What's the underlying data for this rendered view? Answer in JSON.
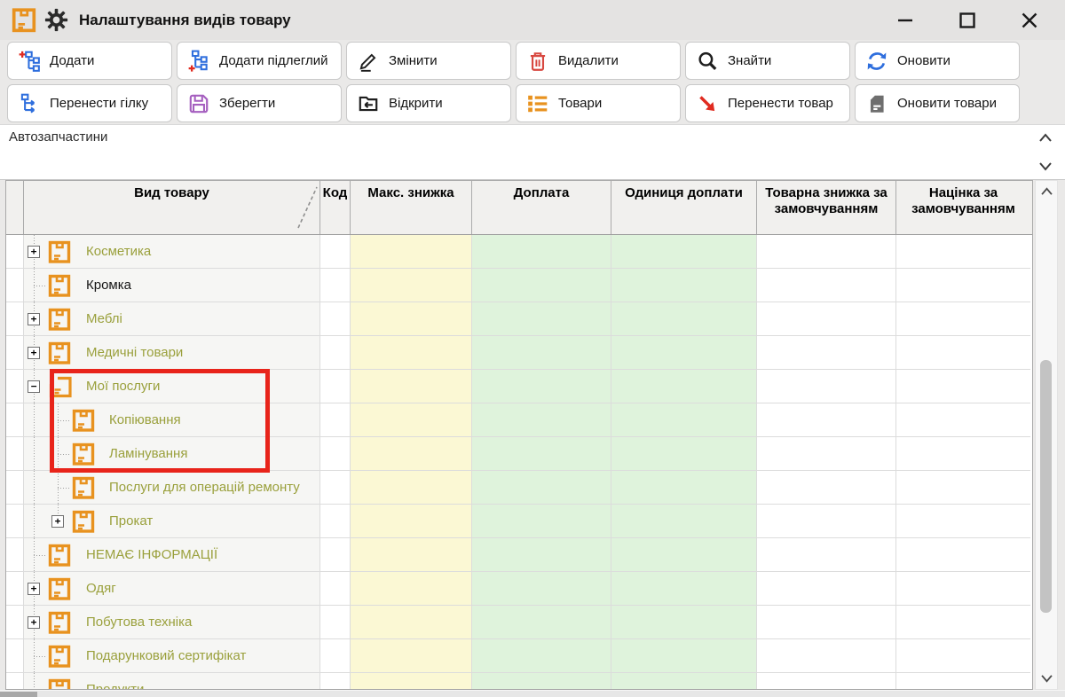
{
  "window": {
    "title": "Налаштування видів товару",
    "controls": [
      {
        "name": "minimize"
      },
      {
        "name": "maximize"
      },
      {
        "name": "close"
      }
    ]
  },
  "toolbar": {
    "row1": [
      {
        "label": "Додати",
        "icon": "tree-add-icon"
      },
      {
        "label": "Додати підлеглий",
        "icon": "tree-add-child-icon"
      },
      {
        "label": "Змінити",
        "icon": "pencil-icon"
      },
      {
        "label": "Видалити",
        "icon": "trash-icon"
      },
      {
        "label": "Знайти",
        "icon": "search-icon"
      },
      {
        "label": "Оновити",
        "icon": "refresh-icon"
      }
    ],
    "row2": [
      {
        "label": "Перенести гілку",
        "icon": "tree-move-icon"
      },
      {
        "label": "Зберегти",
        "icon": "save-icon"
      },
      {
        "label": "Відкрити",
        "icon": "open-folder-icon"
      },
      {
        "label": "Товари",
        "icon": "products-list-icon"
      },
      {
        "label": "Перенести товар",
        "icon": "move-product-arrow-icon"
      },
      {
        "label": "Оновити товари",
        "icon": "update-products-icon"
      }
    ]
  },
  "path_panel": {
    "text": "Автозапчастини"
  },
  "table": {
    "columns": [
      "Вид товару",
      "Код",
      "Макс. знижка",
      "Доплата",
      "Одиниця доплати",
      "Товарна знижка за замовчуванням",
      "Націнка за замовчуванням"
    ],
    "rows": [
      {
        "label": "Косметика",
        "level": 0,
        "expander": "plus",
        "icon": "product-type"
      },
      {
        "label": "Кромка",
        "level": 0,
        "expander": null,
        "icon": "product-type",
        "text_color": "black"
      },
      {
        "label": "Меблі",
        "level": 0,
        "expander": "plus",
        "icon": "product-type"
      },
      {
        "label": "Медичні товари",
        "level": 0,
        "expander": "plus",
        "icon": "product-type"
      },
      {
        "label": "Мої послуги",
        "level": 0,
        "expander": "minus",
        "icon": "product-type-open",
        "highlighted": true
      },
      {
        "label": "Копіювання",
        "level": 1,
        "expander": null,
        "icon": "product-type",
        "highlighted": true
      },
      {
        "label": "Ламінування",
        "level": 1,
        "expander": null,
        "icon": "product-type",
        "highlighted": true
      },
      {
        "label": "Послуги для операцій ремонту",
        "level": 1,
        "expander": null,
        "icon": "product-type"
      },
      {
        "label": "Прокат",
        "level": 1,
        "expander": "plus",
        "icon": "product-type"
      },
      {
        "label": "НЕМАЄ ІНФОРМАЦІЇ",
        "level": 0,
        "expander": null,
        "icon": "product-type"
      },
      {
        "label": "Одяг",
        "level": 0,
        "expander": "plus",
        "icon": "product-type"
      },
      {
        "label": "Побутова техніка",
        "level": 0,
        "expander": "plus",
        "icon": "product-type"
      },
      {
        "label": "Подарунковий сертифікат",
        "level": 0,
        "expander": null,
        "icon": "product-type"
      },
      {
        "label": "Продукти",
        "level": 0,
        "expander": null,
        "icon": "product-type",
        "partial": true
      }
    ]
  },
  "highlight": {
    "note": "red annotation rectangle around Мої послуги, Копіювання, Ламінування"
  },
  "colors": {
    "accent_orange": "#E8921F",
    "tree_text_olive": "#9AA03C",
    "cell_yellow": "#FBF8D4",
    "cell_green": "#DFF3DC",
    "highlight_red": "#E8241A",
    "icon_blue": "#2E6EDD",
    "icon_red": "#D84840",
    "icon_purple": "#A55FBF"
  }
}
